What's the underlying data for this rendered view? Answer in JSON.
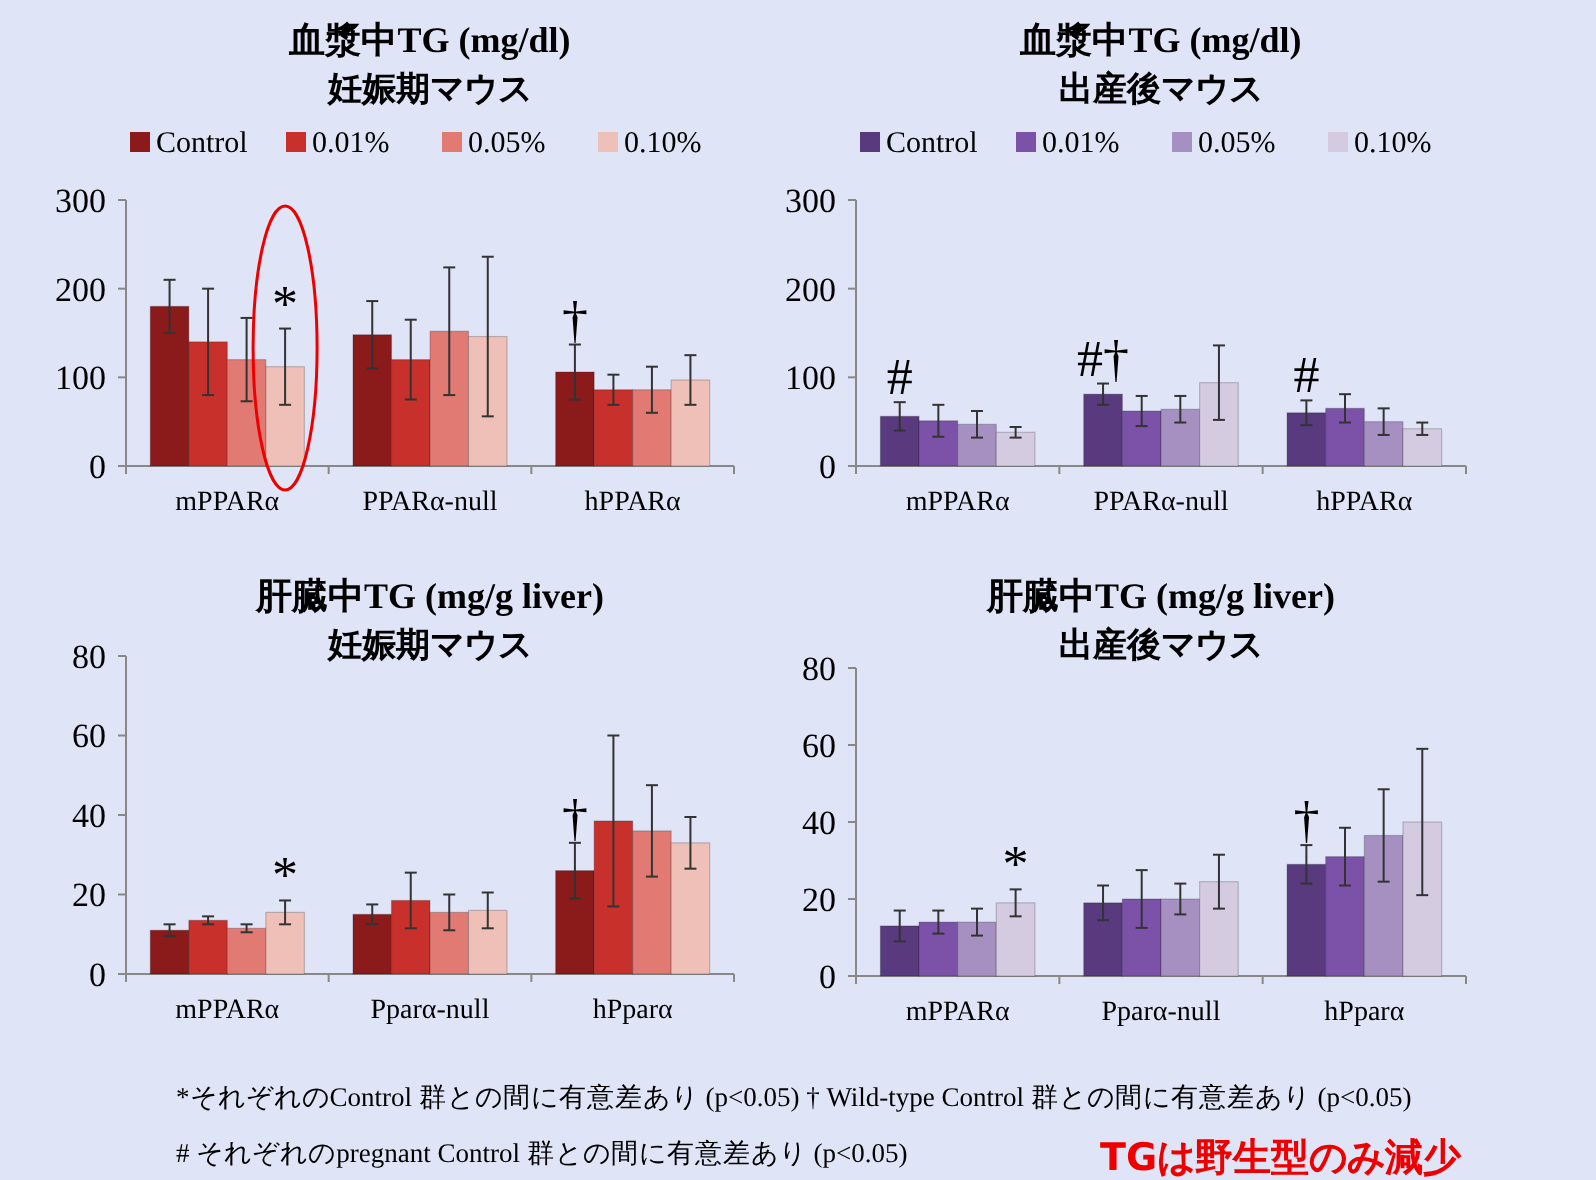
{
  "chart_data": [
    {
      "type": "bar",
      "title": "血漿中TG (mg/dl)",
      "subtitle": "妊娠期マウス",
      "categories": [
        "mPPARα",
        "PPARα-null",
        "hPPARα"
      ],
      "ylim": [
        0,
        300
      ],
      "yticks": [
        0,
        100,
        200,
        300
      ],
      "legend": "top",
      "series": [
        {
          "name": "Control",
          "color": "#8b1a1a",
          "values": [
            180,
            148,
            106
          ],
          "errors": [
            30,
            38,
            31
          ]
        },
        {
          "name": "0.01%",
          "color": "#c8302c",
          "values": [
            140,
            120,
            86
          ],
          "errors": [
            60,
            45,
            17
          ]
        },
        {
          "name": "0.05%",
          "color": "#e07a73",
          "values": [
            120,
            152,
            86
          ],
          "errors": [
            47,
            72,
            26
          ]
        },
        {
          "name": "0.10%",
          "color": "#efc0b8",
          "values": [
            112,
            146,
            97
          ],
          "errors": [
            43,
            90,
            28
          ]
        }
      ],
      "annotations": [
        "*",
        "†"
      ]
    },
    {
      "type": "bar",
      "title": "血漿中TG (mg/dl)",
      "subtitle": "出産後マウス",
      "categories": [
        "mPPARα",
        "PPARα-null",
        "hPPARα"
      ],
      "ylim": [
        0,
        300
      ],
      "yticks": [
        0,
        100,
        200,
        300
      ],
      "legend": "top",
      "series": [
        {
          "name": "Control",
          "color": "#5a3a7e",
          "values": [
            56,
            81,
            60
          ],
          "errors": [
            16,
            12,
            14
          ]
        },
        {
          "name": "0.01%",
          "color": "#7b52a8",
          "values": [
            51,
            62,
            65
          ],
          "errors": [
            18,
            17,
            16
          ]
        },
        {
          "name": "0.05%",
          "color": "#a690c2",
          "values": [
            47,
            64,
            50
          ],
          "errors": [
            15,
            15,
            15
          ]
        },
        {
          "name": "0.10%",
          "color": "#d5cbe0",
          "values": [
            38,
            94,
            42
          ],
          "errors": [
            6,
            42,
            7
          ]
        }
      ],
      "annotations": [
        "#",
        "#†",
        "#"
      ]
    },
    {
      "type": "bar",
      "title": "肝臓中TG (mg/g liver)",
      "subtitle": "妊娠期マウス",
      "categories": [
        "mPPARα",
        "Pparα-null",
        "hPparα"
      ],
      "ylim": [
        0,
        80
      ],
      "yticks": [
        0,
        20,
        40,
        60,
        80
      ],
      "series": [
        {
          "color": "#8b1a1a",
          "values": [
            11,
            15,
            26
          ],
          "errors": [
            1.5,
            2.5,
            7
          ]
        },
        {
          "color": "#c8302c",
          "values": [
            13.5,
            18.5,
            38.5
          ],
          "errors": [
            1,
            7,
            21.5
          ]
        },
        {
          "color": "#e07a73",
          "values": [
            11.5,
            15.5,
            36
          ],
          "errors": [
            1,
            4.5,
            11.5
          ]
        },
        {
          "color": "#efc0b8",
          "values": [
            15.5,
            16,
            33
          ],
          "errors": [
            3,
            4.5,
            6.5
          ]
        }
      ],
      "annotations": [
        "*",
        "†"
      ]
    },
    {
      "type": "bar",
      "title": "肝臓中TG (mg/g liver)",
      "subtitle": "出産後マウス",
      "categories": [
        "mPPARα",
        "Pparα-null",
        "hPparα"
      ],
      "ylim": [
        0,
        80
      ],
      "yticks": [
        0,
        20,
        40,
        60,
        80
      ],
      "series": [
        {
          "color": "#5a3a7e",
          "values": [
            13,
            19,
            29
          ],
          "errors": [
            4,
            4.5,
            5
          ]
        },
        {
          "color": "#7b52a8",
          "values": [
            14,
            20,
            31
          ],
          "errors": [
            3,
            7.5,
            7.5
          ]
        },
        {
          "color": "#a690c2",
          "values": [
            14,
            20,
            36.5
          ],
          "errors": [
            3.5,
            4,
            12
          ]
        },
        {
          "color": "#d5cbe0",
          "values": [
            19,
            24.5,
            40
          ],
          "errors": [
            3.5,
            7,
            19
          ]
        }
      ],
      "annotations": [
        "*",
        "†",
        "*それぞれのControl 群との間に有意差あり (p<0.05)  †  Wild-type Control 群との間に有意差あり (p<0.05)",
        "#  それぞれのpregnant Control 群との間に有意差あり (p<0.05)",
        "TGは野生型のみ減少"
      ]
    }
  ]
}
